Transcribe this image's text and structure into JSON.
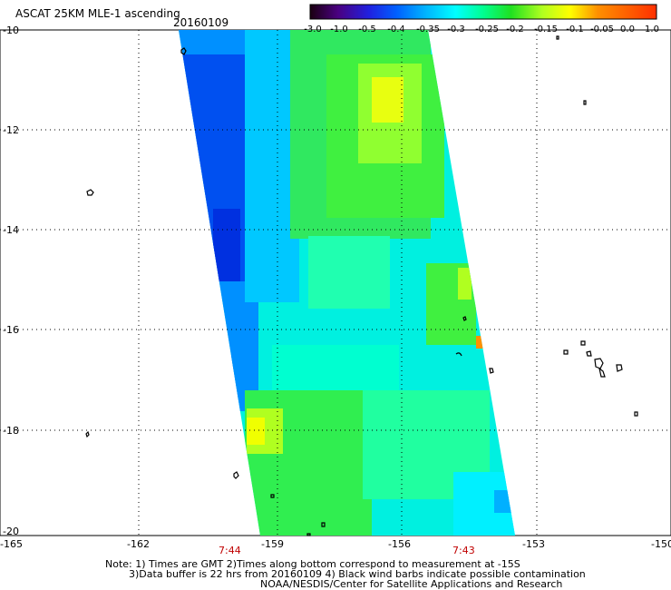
{
  "title": "ASCAT 25KM MLE-1 ascending",
  "date": "20160109",
  "colorbar": {
    "labels": [
      "-3.0",
      "-1.0",
      "-0.5",
      "-0.4",
      "-0.35",
      "-0.3",
      "-0.25",
      "-0.2",
      "-0.15",
      "-0.1",
      "-0.05",
      "0.0",
      "1.0"
    ],
    "colors": [
      "#1a0010",
      "#4a0080",
      "#2020e0",
      "#0060ff",
      "#00b0ff",
      "#00ffff",
      "#00ff90",
      "#20e020",
      "#b0ff20",
      "#ffff00",
      "#ff9000",
      "#ff3000"
    ]
  },
  "axes": {
    "lat_labels": [
      "-10",
      "-12",
      "-14",
      "-16",
      "-18",
      "-20"
    ],
    "lon_labels": [
      "-165",
      "-162",
      "-159",
      "-156",
      "-153",
      "-150"
    ]
  },
  "times": [
    "7:44",
    "7:43"
  ],
  "notes": [
    "Note: 1) Times are GMT 2)Times along bottom correspond to measurement at -15S",
    "3)Data buffer is 22 hrs from 20160109 4) Black wind barbs indicate possible contamination",
    "NOAA/NESDIS/Center for Satellite Applications and Research"
  ]
}
